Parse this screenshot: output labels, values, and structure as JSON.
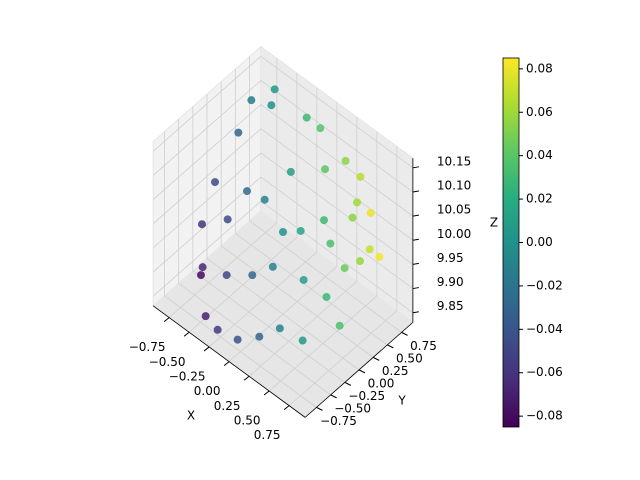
{
  "chart_data": {
    "type": "scatter3d",
    "xlabel": "X",
    "ylabel": "Y",
    "zlabel": "Z",
    "xlim": [
      -0.95,
      0.95
    ],
    "ylim": [
      -0.95,
      0.95
    ],
    "zlim": [
      9.83,
      10.17
    ],
    "xticks": [
      -0.75,
      -0.5,
      -0.25,
      0,
      0.25,
      0.5,
      0.75
    ],
    "yticks": [
      -0.75,
      -0.5,
      -0.25,
      0,
      0.25,
      0.5,
      0.75
    ],
    "zticks": [
      9.85,
      9.9,
      9.95,
      10,
      10.05,
      10.1,
      10.15
    ],
    "xtick_labels": [
      "−0.75",
      "−0.50",
      "−0.25",
      "0.00",
      "0.25",
      "0.50",
      "0.75"
    ],
    "ytick_labels": [
      "−0.75",
      "−0.50",
      "−0.25",
      "0.00",
      "0.25",
      "0.50",
      "0.75"
    ],
    "ztick_labels": [
      "9.85",
      "9.90",
      "9.95",
      "10.00",
      "10.05",
      "10.10",
      "10.15"
    ],
    "grid": true,
    "colormap": "viridis",
    "colormap_colors": [
      "#440154",
      "#472d7b",
      "#3b528b",
      "#2c728e",
      "#21918c",
      "#28ae80",
      "#5ec962",
      "#addc30",
      "#fde725"
    ],
    "clim": [
      -0.085,
      0.085
    ],
    "cticks": [
      -0.08,
      -0.06,
      -0.04,
      -0.02,
      0,
      0.02,
      0.04,
      0.06,
      0.08
    ],
    "ctick_labels": [
      "−0.08",
      "−0.06",
      "−0.04",
      "−0.02",
      "0.00",
      "0.02",
      "0.04",
      "0.06",
      "0.08"
    ],
    "x": [
      -0.8,
      -0.7,
      -0.6,
      -0.5,
      -0.4,
      -0.3,
      -0.2,
      -0.1,
      0.0,
      0.1,
      0.2,
      0.3,
      0.4,
      0.5,
      0.6,
      0.7,
      0.8,
      -0.75,
      -0.55,
      -0.35,
      -0.15,
      0.05,
      0.25,
      0.45,
      0.65,
      0.85,
      -0.85,
      -0.65,
      -0.45,
      -0.25,
      0.15,
      0.35,
      0.55,
      0.75,
      -0.1,
      0.0,
      -0.6,
      0.4,
      0.6,
      0.85
    ],
    "y": [
      -0.3,
      0.2,
      -0.6,
      0.5,
      -0.8,
      0.1,
      0.7,
      -0.4,
      0.0,
      0.6,
      -0.7,
      0.3,
      -0.2,
      0.6,
      -0.5,
      0.1,
      0.4,
      0.5,
      -0.2,
      -0.5,
      0.35,
      -0.25,
      0.75,
      0.2,
      -0.15,
      -0.2,
      0.0,
      -0.5,
      0.0,
      -0.8,
      0.1,
      -0.55,
      0.45,
      0.3,
      0.8,
      -0.8,
      0.7,
      0.8,
      0.7,
      0.5
    ],
    "z": [
      9.95,
      10.1,
      9.9,
      10.15,
      9.86,
      10.02,
      10.14,
      9.94,
      10.0,
      10.08,
      9.88,
      10.03,
      9.97,
      10.06,
      9.9,
      10.0,
      10.02,
      10.13,
      9.98,
      9.92,
      10.07,
      9.96,
      10.1,
      10.01,
      9.96,
      9.93,
      10.0,
      9.9,
      10.03,
      9.85,
      10.01,
      9.9,
      10.05,
      10.0,
      10.12,
      9.86,
      10.15,
      10.08,
      10.04,
      10.0
    ],
    "c": [
      -0.06,
      -0.03,
      -0.08,
      0.0,
      -0.07,
      -0.01,
      0.03,
      -0.03,
      0.0,
      0.04,
      -0.03,
      0.03,
      0.01,
      0.06,
      0.005,
      0.045,
      0.07,
      -0.015,
      -0.045,
      -0.05,
      0.01,
      -0.011,
      0.055,
      0.035,
      0.028,
      0.036,
      -0.047,
      -0.066,
      -0.025,
      -0.058,
      0.014,
      -0.011,
      0.055,
      0.058,
      0.038,
      -0.044,
      0.005,
      0.066,
      0.08,
      0.083
    ]
  }
}
